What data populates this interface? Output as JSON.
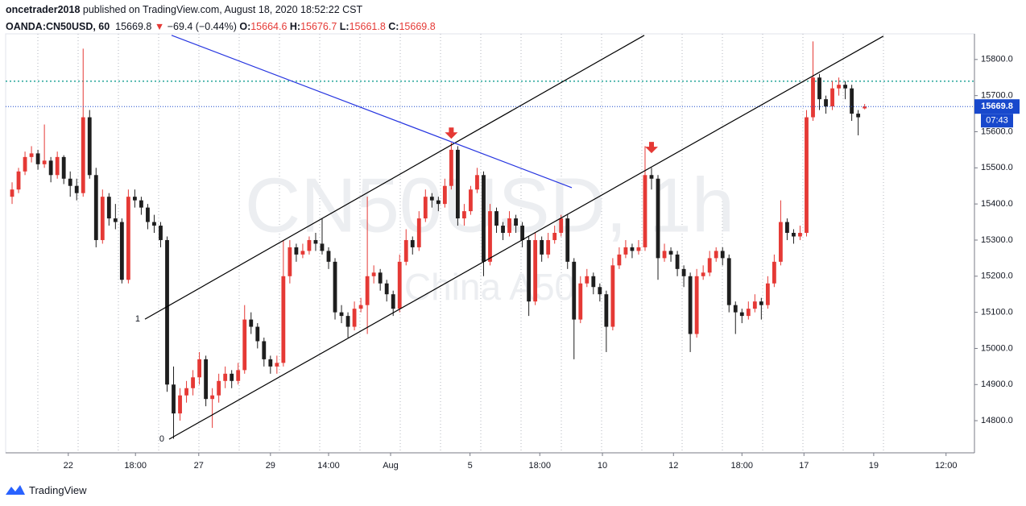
{
  "header": {
    "publisher": "oncetrader2018",
    "published_text": "published on TradingView.com, August 18, 2020 18:52:22 CST",
    "symbol": "OANDA:CN50USD, 60",
    "direction": "▼",
    "change": "−69.4 (−0.44%)",
    "ohlc_labels": [
      "O:",
      "H:",
      "L:",
      "C:"
    ]
  },
  "footer": {
    "brand": "TradingView"
  },
  "chart_data": {
    "type": "candlestick",
    "watermark": [
      "CN50USD, 1h",
      "China A50"
    ],
    "up_color": "#e53935",
    "down_color": "#1e1e1e",
    "xlim": [
      -1,
      149
    ],
    "ylim": [
      14711,
      15871
    ],
    "xticks": [
      {
        "value": 8.7,
        "label": "22"
      },
      {
        "value": 19.1,
        "label": "18:00"
      },
      {
        "value": 28.9,
        "label": "27"
      },
      {
        "value": 40.0,
        "label": "29"
      },
      {
        "value": 49.0,
        "label": "14:00"
      },
      {
        "value": 58.6,
        "label": "Aug"
      },
      {
        "value": 70.9,
        "label": "5"
      },
      {
        "value": 81.7,
        "label": "18:00"
      },
      {
        "value": 91.4,
        "label": "10"
      },
      {
        "value": 102.4,
        "label": "12"
      },
      {
        "value": 113.0,
        "label": "18:00"
      },
      {
        "value": 122.6,
        "label": "17"
      },
      {
        "value": 133.4,
        "label": "19"
      },
      {
        "value": 144.6,
        "label": "12:00"
      }
    ],
    "yticks": [
      {
        "value": 14800,
        "label": "14800.0"
      },
      {
        "value": 14900,
        "label": "14900.0"
      },
      {
        "value": 15000,
        "label": "15000.0"
      },
      {
        "value": 15100,
        "label": "15100.0"
      },
      {
        "value": 15200,
        "label": "15200.0"
      },
      {
        "value": 15300,
        "label": "15300.0"
      },
      {
        "value": 15400,
        "label": "15400.0"
      },
      {
        "value": 15500,
        "label": "15500.0"
      },
      {
        "value": 15600,
        "label": "15600.0"
      },
      {
        "value": 15700,
        "label": "15700.0"
      },
      {
        "value": 15800,
        "label": "15800.0"
      }
    ],
    "countdown": "07:43",
    "last_price_color": "#1848cc",
    "horizontal_lines": [
      {
        "value": 15740,
        "color": "#26a69a"
      }
    ],
    "trend_lines": [
      {
        "color": "#000000",
        "x": [
          20.57,
          97.88
        ],
        "y": [
          15081,
          15867
        ],
        "label": "1"
      },
      {
        "color": "#000000",
        "x": [
          24.31,
          134.9
        ],
        "y": [
          14748.7,
          15864.7
        ],
        "label": "0"
      },
      {
        "color": "#2635e0",
        "x": [
          24.69,
          86.66
        ],
        "y": [
          15867,
          15445
        ]
      }
    ],
    "arrow_markers": [
      {
        "x": 68,
        "y": 15585,
        "color": "#e53935"
      },
      {
        "x": 99,
        "y": 15545,
        "color": "#e53935"
      }
    ],
    "candles": [
      [
        15420,
        15460,
        15400,
        15440
      ],
      [
        15440,
        15500,
        15430,
        15490
      ],
      [
        15490,
        15545,
        15480,
        15530
      ],
      [
        15530,
        15560,
        15515,
        15540
      ],
      [
        15540,
        15550,
        15495,
        15510
      ],
      [
        15510,
        15620,
        15500,
        15520
      ],
      [
        15520,
        15530,
        15460,
        15480
      ],
      [
        15480,
        15545,
        15470,
        15530
      ],
      [
        15530,
        15535,
        15455,
        15470
      ],
      [
        15470,
        15490,
        15420,
        15450
      ],
      [
        15450,
        15470,
        15410,
        15430
      ],
      [
        15430,
        15830,
        15420,
        15640
      ],
      [
        15640,
        15660,
        15470,
        15480
      ],
      [
        15480,
        15500,
        15280,
        15300
      ],
      [
        15300,
        15440,
        15290,
        15420
      ],
      [
        15420,
        15430,
        15340,
        15360
      ],
      [
        15360,
        15400,
        15330,
        15350
      ],
      [
        15350,
        15360,
        15180,
        15190
      ],
      [
        15190,
        15440,
        15180,
        15420
      ],
      [
        15420,
        15440,
        15390,
        15410
      ],
      [
        15410,
        15420,
        15370,
        15390
      ],
      [
        15390,
        15400,
        15330,
        15350
      ],
      [
        15350,
        15370,
        15320,
        15340
      ],
      [
        15340,
        15350,
        15280,
        15300
      ],
      [
        15300,
        15310,
        14880,
        14900
      ],
      [
        14900,
        14950,
        14750,
        14820
      ],
      [
        14820,
        14890,
        14800,
        14870
      ],
      [
        14870,
        14910,
        14850,
        14890
      ],
      [
        14890,
        14940,
        14870,
        14920
      ],
      [
        14920,
        14990,
        14900,
        14970
      ],
      [
        14970,
        14980,
        14840,
        14860
      ],
      [
        14860,
        14890,
        14780,
        14870
      ],
      [
        14870,
        14930,
        14850,
        14910
      ],
      [
        14910,
        14950,
        14890,
        14930
      ],
      [
        14930,
        14940,
        14890,
        14910
      ],
      [
        14910,
        14960,
        14900,
        14940
      ],
      [
        14940,
        15120,
        14930,
        15080
      ],
      [
        15080,
        15100,
        15040,
        15060
      ],
      [
        15060,
        15070,
        15000,
        15020
      ],
      [
        15020,
        15030,
        14950,
        14970
      ],
      [
        14970,
        14980,
        14930,
        14950
      ],
      [
        14950,
        14980,
        14930,
        14960
      ],
      [
        14960,
        15300,
        14950,
        15200
      ],
      [
        15200,
        15300,
        15180,
        15280
      ],
      [
        15280,
        15290,
        15240,
        15260
      ],
      [
        15260,
        15290,
        15250,
        15270
      ],
      [
        15270,
        15310,
        15260,
        15300
      ],
      [
        15300,
        15320,
        15270,
        15290
      ],
      [
        15290,
        15360,
        15260,
        15270
      ],
      [
        15270,
        15280,
        15220,
        15240
      ],
      [
        15240,
        15250,
        15080,
        15100
      ],
      [
        15100,
        15120,
        15070,
        15090
      ],
      [
        15090,
        15100,
        15030,
        15060
      ],
      [
        15060,
        15130,
        15050,
        15110
      ],
      [
        15110,
        15140,
        15100,
        15120
      ],
      [
        15120,
        15420,
        15040,
        15200
      ],
      [
        15200,
        15230,
        15180,
        15210
      ],
      [
        15210,
        15220,
        15160,
        15180
      ],
      [
        15180,
        15190,
        15130,
        15150
      ],
      [
        15150,
        15160,
        15090,
        15110
      ],
      [
        15110,
        15260,
        15100,
        15240
      ],
      [
        15240,
        15330,
        15230,
        15300
      ],
      [
        15300,
        15310,
        15260,
        15280
      ],
      [
        15280,
        15380,
        15270,
        15360
      ],
      [
        15360,
        15440,
        15350,
        15420
      ],
      [
        15420,
        15430,
        15390,
        15410
      ],
      [
        15410,
        15420,
        15380,
        15400
      ],
      [
        15400,
        15470,
        15390,
        15450
      ],
      [
        15450,
        15570,
        15440,
        15550
      ],
      [
        15550,
        15560,
        15340,
        15360
      ],
      [
        15360,
        15400,
        15340,
        15380
      ],
      [
        15380,
        15450,
        15370,
        15440
      ],
      [
        15440,
        15500,
        15430,
        15480
      ],
      [
        15480,
        15490,
        15200,
        15240
      ],
      [
        15240,
        15400,
        15230,
        15380
      ],
      [
        15380,
        15390,
        15320,
        15340
      ],
      [
        15340,
        15350,
        15300,
        15320
      ],
      [
        15320,
        15380,
        15310,
        15360
      ],
      [
        15360,
        15370,
        15320,
        15340
      ],
      [
        15340,
        15350,
        15280,
        15300
      ],
      [
        15300,
        15310,
        15090,
        15130
      ],
      [
        15130,
        15320,
        15120,
        15300
      ],
      [
        15300,
        15310,
        15240,
        15260
      ],
      [
        15260,
        15320,
        15250,
        15300
      ],
      [
        15300,
        15340,
        15290,
        15320
      ],
      [
        15320,
        15370,
        15310,
        15360
      ],
      [
        15360,
        15370,
        15220,
        15240
      ],
      [
        15240,
        15250,
        14970,
        15080
      ],
      [
        15080,
        15200,
        15070,
        15180
      ],
      [
        15180,
        15220,
        15170,
        15200
      ],
      [
        15200,
        15210,
        15150,
        15170
      ],
      [
        15170,
        15180,
        15130,
        15150
      ],
      [
        15150,
        15160,
        14990,
        15060
      ],
      [
        15060,
        15250,
        15050,
        15230
      ],
      [
        15230,
        15280,
        15220,
        15260
      ],
      [
        15260,
        15300,
        15250,
        15280
      ],
      [
        15280,
        15290,
        15250,
        15270
      ],
      [
        15270,
        15300,
        15260,
        15280
      ],
      [
        15280,
        15560,
        15270,
        15480
      ],
      [
        15480,
        15500,
        15440,
        15470
      ],
      [
        15470,
        15480,
        15190,
        15250
      ],
      [
        15250,
        15290,
        15240,
        15270
      ],
      [
        15270,
        15280,
        15240,
        15260
      ],
      [
        15260,
        15270,
        15200,
        15220
      ],
      [
        15220,
        15230,
        15170,
        15200
      ],
      [
        15200,
        15210,
        14990,
        15040
      ],
      [
        15040,
        15220,
        15030,
        15200
      ],
      [
        15200,
        15230,
        15190,
        15210
      ],
      [
        15210,
        15270,
        15200,
        15250
      ],
      [
        15250,
        15280,
        15240,
        15270
      ],
      [
        15270,
        15280,
        15230,
        15250
      ],
      [
        15250,
        15260,
        15100,
        15120
      ],
      [
        15120,
        15130,
        15040,
        15100
      ],
      [
        15100,
        15110,
        15070,
        15090
      ],
      [
        15090,
        15130,
        15080,
        15110
      ],
      [
        15110,
        15150,
        15100,
        15130
      ],
      [
        15130,
        15140,
        15080,
        15120
      ],
      [
        15120,
        15200,
        15110,
        15180
      ],
      [
        15180,
        15260,
        15170,
        15240
      ],
      [
        15240,
        15410,
        15230,
        15350
      ],
      [
        15350,
        15360,
        15300,
        15320
      ],
      [
        15320,
        15330,
        15290,
        15310
      ],
      [
        15310,
        15340,
        15300,
        15320
      ],
      [
        15320,
        15660,
        15310,
        15640
      ],
      [
        15640,
        15850,
        15630,
        15750
      ],
      [
        15750,
        15760,
        15660,
        15690
      ],
      [
        15690,
        15700,
        15650,
        15670
      ],
      [
        15670,
        15740,
        15660,
        15720
      ],
      [
        15720,
        15750,
        15700,
        15730
      ],
      [
        15730,
        15740,
        15690,
        15720
      ],
      [
        15720,
        15730,
        15630,
        15650
      ],
      [
        15650,
        15660,
        15590,
        15640
      ],
      [
        15664.6,
        15676.7,
        15661.8,
        15669.8
      ]
    ]
  }
}
